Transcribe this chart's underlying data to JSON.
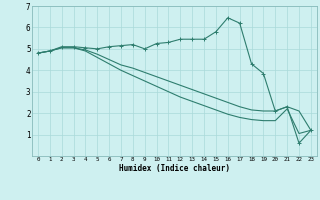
{
  "line1": {
    "x": [
      0,
      1,
      2,
      3,
      4,
      5,
      6,
      7,
      8,
      9,
      10,
      11,
      12,
      13,
      14,
      15,
      16,
      17,
      18,
      19,
      20,
      21,
      22,
      23
    ],
    "y": [
      4.8,
      4.9,
      5.1,
      5.1,
      5.05,
      5.0,
      5.1,
      5.15,
      5.2,
      5.0,
      5.25,
      5.3,
      5.45,
      5.45,
      5.45,
      5.8,
      6.45,
      6.2,
      4.3,
      3.85,
      2.1,
      2.3,
      0.6,
      1.2
    ]
  },
  "line2": {
    "x": [
      0,
      1,
      2,
      3,
      4,
      5,
      6,
      7,
      8,
      9,
      10,
      11,
      12,
      13,
      14,
      15,
      16,
      17,
      18,
      19,
      20,
      21,
      22,
      23
    ],
    "y": [
      4.8,
      4.9,
      5.05,
      5.05,
      4.95,
      4.75,
      4.5,
      4.25,
      4.1,
      3.9,
      3.7,
      3.5,
      3.3,
      3.1,
      2.9,
      2.7,
      2.5,
      2.3,
      2.15,
      2.1,
      2.1,
      2.3,
      2.1,
      1.2
    ]
  },
  "line3": {
    "x": [
      0,
      1,
      2,
      3,
      4,
      5,
      6,
      7,
      8,
      9,
      10,
      11,
      12,
      13,
      14,
      15,
      16,
      17,
      18,
      19,
      20,
      21,
      22,
      23
    ],
    "y": [
      4.8,
      4.9,
      5.05,
      5.05,
      4.9,
      4.6,
      4.3,
      4.0,
      3.75,
      3.5,
      3.25,
      3.0,
      2.75,
      2.55,
      2.35,
      2.15,
      1.95,
      1.8,
      1.7,
      1.65,
      1.65,
      2.2,
      1.05,
      1.2
    ]
  },
  "background_color": "#cef0f0",
  "grid_color": "#aadada",
  "line_color": "#2e7d6e",
  "xlabel": "Humidex (Indice chaleur)",
  "xlim": [
    -0.5,
    23.5
  ],
  "ylim": [
    0,
    7
  ],
  "yticks": [
    1,
    2,
    3,
    4,
    5,
    6,
    7
  ],
  "xticks": [
    0,
    1,
    2,
    3,
    4,
    5,
    6,
    7,
    8,
    9,
    10,
    11,
    12,
    13,
    14,
    15,
    16,
    17,
    18,
    19,
    20,
    21,
    22,
    23
  ]
}
